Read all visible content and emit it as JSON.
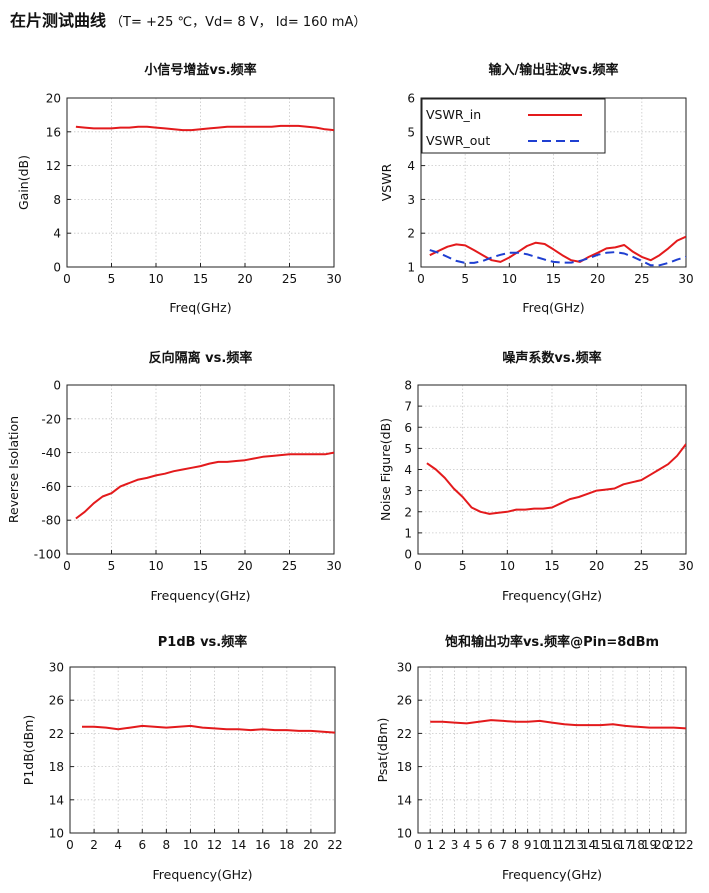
{
  "header": {
    "title": "在片测试曲线",
    "conditions": "（T= +25 ℃，Vd= 8 V， Id= 160 mA）"
  },
  "colors": {
    "red": "#e31a1c",
    "blue": "#1f3fd1"
  },
  "chart_data": [
    {
      "id": "gain",
      "type": "line",
      "title": "小信号增益vs.频率",
      "xlabel": "Freq(GHz)",
      "ylabel": "Gain(dB)",
      "xlim": [
        0,
        30
      ],
      "ylim": [
        0,
        20
      ],
      "xticks": [
        0,
        5,
        10,
        15,
        20,
        25,
        30
      ],
      "yticks": [
        0,
        4,
        8,
        12,
        16,
        20
      ],
      "grid": true,
      "series": [
        {
          "color": "red",
          "style": "solid",
          "x": [
            1,
            2,
            3,
            4,
            5,
            6,
            7,
            8,
            9,
            10,
            11,
            12,
            13,
            14,
            15,
            16,
            17,
            18,
            19,
            20,
            21,
            22,
            23,
            24,
            25,
            26,
            27,
            28,
            29,
            30
          ],
          "y": [
            16.6,
            16.5,
            16.4,
            16.4,
            16.4,
            16.5,
            16.5,
            16.6,
            16.6,
            16.5,
            16.4,
            16.3,
            16.2,
            16.2,
            16.3,
            16.4,
            16.5,
            16.6,
            16.6,
            16.6,
            16.6,
            16.6,
            16.6,
            16.7,
            16.7,
            16.7,
            16.6,
            16.5,
            16.3,
            16.2
          ]
        }
      ]
    },
    {
      "id": "vswr",
      "type": "line",
      "title": "输入/输出驻波vs.频率",
      "xlabel": "Freq(GHz)",
      "ylabel": "VSWR",
      "xlim": [
        0,
        30
      ],
      "ylim": [
        1,
        6
      ],
      "xticks": [
        0,
        5,
        10,
        15,
        20,
        25,
        30
      ],
      "yticks": [
        1,
        2,
        3,
        4,
        5,
        6
      ],
      "grid": true,
      "legend": "top-left",
      "series": [
        {
          "name": "VSWR_in",
          "color": "red",
          "style": "solid",
          "x": [
            1,
            2,
            3,
            4,
            5,
            6,
            7,
            8,
            9,
            10,
            11,
            12,
            13,
            14,
            15,
            16,
            17,
            18,
            19,
            20,
            21,
            22,
            23,
            24,
            25,
            26,
            27,
            28,
            29,
            30
          ],
          "y": [
            1.35,
            1.48,
            1.6,
            1.67,
            1.64,
            1.5,
            1.35,
            1.2,
            1.15,
            1.28,
            1.45,
            1.62,
            1.72,
            1.68,
            1.52,
            1.35,
            1.2,
            1.15,
            1.3,
            1.42,
            1.55,
            1.58,
            1.65,
            1.45,
            1.3,
            1.2,
            1.35,
            1.55,
            1.78,
            1.9
          ]
        },
        {
          "name": "VSWR_out",
          "color": "blue",
          "style": "dashed",
          "x": [
            1,
            2,
            3,
            4,
            5,
            6,
            7,
            8,
            9,
            10,
            11,
            12,
            13,
            14,
            15,
            16,
            17,
            18,
            19,
            20,
            21,
            22,
            23,
            24,
            25,
            26,
            27,
            28,
            29,
            30
          ],
          "y": [
            1.5,
            1.42,
            1.3,
            1.18,
            1.12,
            1.12,
            1.18,
            1.28,
            1.36,
            1.42,
            1.42,
            1.38,
            1.3,
            1.22,
            1.15,
            1.13,
            1.13,
            1.18,
            1.26,
            1.36,
            1.42,
            1.44,
            1.4,
            1.3,
            1.18,
            1.05,
            1.05,
            1.12,
            1.22,
            1.3
          ]
        }
      ]
    },
    {
      "id": "isolation",
      "type": "line",
      "title": "反向隔离 vs.频率",
      "xlabel": "Frequency(GHz)",
      "ylabel": "Reverse Isolation",
      "xlim": [
        0,
        30
      ],
      "ylim": [
        -100,
        0
      ],
      "xticks": [
        0,
        5,
        10,
        15,
        20,
        25,
        30
      ],
      "yticks": [
        -100,
        -80,
        -60,
        -40,
        -20,
        0
      ],
      "grid": true,
      "series": [
        {
          "color": "red",
          "style": "solid",
          "x": [
            1,
            2,
            3,
            4,
            5,
            6,
            7,
            8,
            9,
            10,
            11,
            12,
            13,
            14,
            15,
            16,
            17,
            18,
            19,
            20,
            21,
            22,
            23,
            24,
            25,
            26,
            27,
            28,
            29,
            30
          ],
          "y": [
            -79,
            -75,
            -70,
            -66,
            -64,
            -60,
            -58,
            -56,
            -55,
            -53.5,
            -52.5,
            -51,
            -50,
            -49,
            -48,
            -46.5,
            -45.5,
            -45.5,
            -45,
            -44.5,
            -43.5,
            -42.5,
            -42,
            -41.5,
            -41,
            -41,
            -41,
            -41,
            -41,
            -40
          ]
        }
      ]
    },
    {
      "id": "noise",
      "type": "line",
      "title": "噪声系数vs.频率",
      "xlabel": "Frequency(GHz)",
      "ylabel": "Noise Figure(dB)",
      "xlim": [
        0,
        30
      ],
      "ylim": [
        0,
        8
      ],
      "xticks": [
        0,
        5,
        10,
        15,
        20,
        25,
        30
      ],
      "yticks": [
        0,
        1,
        2,
        3,
        4,
        5,
        6,
        7,
        8
      ],
      "grid": true,
      "series": [
        {
          "color": "red",
          "style": "solid",
          "x": [
            1,
            2,
            3,
            4,
            5,
            6,
            7,
            8,
            9,
            10,
            11,
            12,
            13,
            14,
            15,
            16,
            17,
            18,
            19,
            20,
            21,
            22,
            23,
            24,
            25,
            26,
            27,
            28,
            29,
            30
          ],
          "y": [
            4.3,
            4.0,
            3.6,
            3.1,
            2.7,
            2.2,
            2.0,
            1.9,
            1.95,
            2.0,
            2.1,
            2.1,
            2.15,
            2.15,
            2.2,
            2.4,
            2.6,
            2.7,
            2.85,
            3.0,
            3.05,
            3.1,
            3.3,
            3.4,
            3.5,
            3.75,
            4.0,
            4.25,
            4.65,
            5.2
          ]
        }
      ]
    },
    {
      "id": "p1db",
      "type": "line",
      "title": "P1dB vs.频率",
      "xlabel": "Frequency(GHz)",
      "ylabel": "P1dB(dBm)",
      "xlim": [
        0,
        22
      ],
      "ylim": [
        10,
        30
      ],
      "xticks": [
        0,
        2,
        4,
        6,
        8,
        10,
        12,
        14,
        16,
        18,
        20,
        22
      ],
      "yticks": [
        10,
        14,
        18,
        22,
        26,
        30
      ],
      "grid": true,
      "series": [
        {
          "color": "red",
          "style": "solid",
          "x": [
            1,
            2,
            3,
            4,
            5,
            6,
            7,
            8,
            9,
            10,
            11,
            12,
            13,
            14,
            15,
            16,
            17,
            18,
            19,
            20,
            21,
            22
          ],
          "y": [
            22.8,
            22.8,
            22.7,
            22.5,
            22.7,
            22.9,
            22.8,
            22.7,
            22.8,
            22.9,
            22.7,
            22.6,
            22.5,
            22.5,
            22.4,
            22.5,
            22.4,
            22.4,
            22.3,
            22.3,
            22.2,
            22.1
          ]
        }
      ]
    },
    {
      "id": "psat",
      "type": "line",
      "title": "饱和输出功率vs.频率@Pin=8dBm",
      "xlabel": "Frequency(GHz)",
      "ylabel": "Psat(dBm)",
      "xlim": [
        0,
        22
      ],
      "ylim": [
        10,
        30
      ],
      "xticks": [
        0,
        1,
        2,
        3,
        4,
        5,
        6,
        7,
        8,
        9,
        10,
        11,
        12,
        13,
        14,
        15,
        16,
        17,
        18,
        19,
        20,
        21,
        22
      ],
      "yticks": [
        10,
        14,
        18,
        22,
        26,
        30
      ],
      "grid": true,
      "series": [
        {
          "color": "red",
          "style": "solid",
          "x": [
            1,
            2,
            3,
            4,
            5,
            6,
            7,
            8,
            9,
            10,
            11,
            12,
            13,
            14,
            15,
            16,
            17,
            18,
            19,
            20,
            21,
            22
          ],
          "y": [
            23.4,
            23.4,
            23.3,
            23.2,
            23.4,
            23.6,
            23.5,
            23.4,
            23.4,
            23.5,
            23.3,
            23.1,
            23.0,
            23.0,
            23.0,
            23.1,
            22.9,
            22.8,
            22.7,
            22.7,
            22.7,
            22.6
          ]
        }
      ]
    }
  ]
}
